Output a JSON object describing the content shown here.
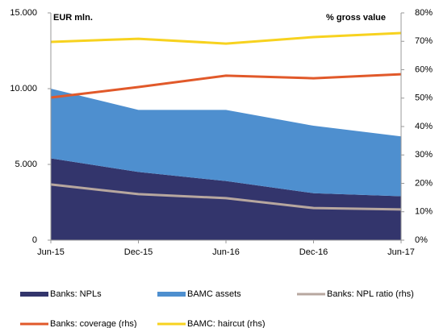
{
  "chart_data": {
    "type": "combo",
    "annotations": [
      "EUR mln.",
      "% gross value"
    ],
    "categories": [
      "Jun-15",
      "Dec-15",
      "Jun-16",
      "Dec-16",
      "Jun-17"
    ],
    "ylim": [
      0,
      15000
    ],
    "yticks": [
      0,
      {
        "value": 5000,
        "label": "5.000"
      },
      {
        "value": 10000,
        "label": "10.000"
      },
      {
        "value": 15000,
        "label": "15.000"
      }
    ],
    "y2lim": [
      0,
      80
    ],
    "y2ticks": [
      {
        "value": 0,
        "label": "0%"
      },
      {
        "value": 10,
        "label": "10%"
      },
      {
        "value": 20,
        "label": "20%"
      },
      {
        "value": 30,
        "label": "30%"
      },
      {
        "value": 40,
        "label": "40%"
      },
      {
        "value": 50,
        "label": "50%"
      },
      {
        "value": 60,
        "label": "60%"
      },
      {
        "value": 70,
        "label": "70%"
      },
      {
        "value": 80,
        "label": "80%"
      }
    ],
    "stacked": true,
    "series": [
      {
        "name": "Banks: NPLs",
        "type": "area",
        "color": "#33356c",
        "values": [
          5400,
          4500,
          3900,
          3100,
          2900
        ]
      },
      {
        "name": "BAMC assets",
        "type": "area",
        "color": "#4e8fcf",
        "values": [
          4600,
          4100,
          4700,
          4450,
          3950
        ]
      },
      {
        "name": "Banks: NPL ratio (rhs)",
        "type": "line",
        "axis": "y2",
        "color": "#b7a79f",
        "values": [
          19.6,
          16.2,
          14.8,
          11.3,
          10.8
        ]
      },
      {
        "name": "Banks: coverage (rhs)",
        "type": "line",
        "axis": "y2",
        "color": "#e1592a",
        "values": [
          50.2,
          53.9,
          57.9,
          57.0,
          58.4
        ]
      },
      {
        "name": "BAMC: haircut  (rhs)",
        "type": "line",
        "axis": "y2",
        "color": "#f7d21f",
        "values": [
          69.8,
          70.9,
          69.2,
          71.5,
          72.9
        ]
      }
    ]
  }
}
